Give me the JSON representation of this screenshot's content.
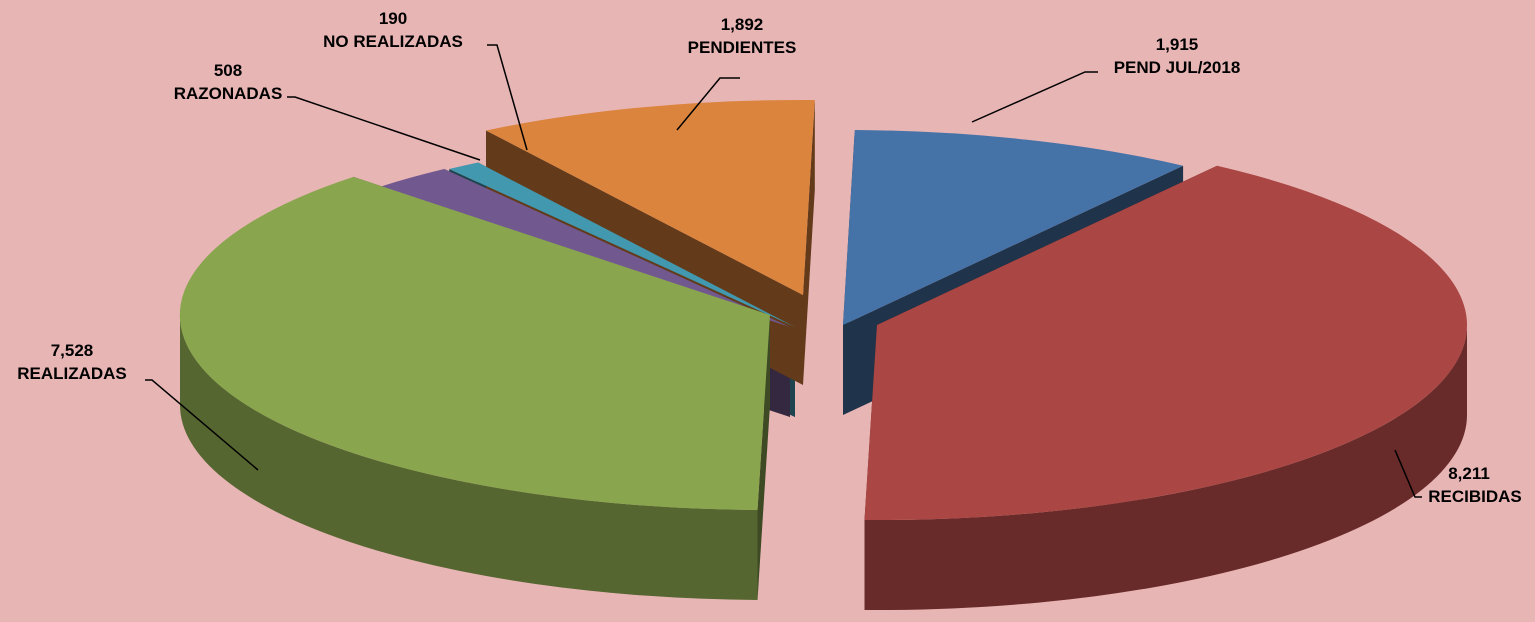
{
  "chart_data": {
    "type": "pie",
    "variant": "3d-exploded",
    "slices": [
      {
        "label": "PEND JUL/2018",
        "value": 1915,
        "display": "1,915",
        "color": "#4572a7"
      },
      {
        "label": "RECIBIDAS",
        "value": 8211,
        "display": "8,211",
        "color": "#aa4643"
      },
      {
        "label": "REALIZADAS",
        "value": 7528,
        "display": "7,528",
        "color": "#89a54e"
      },
      {
        "label": "RAZONADAS",
        "value": 508,
        "display": "508",
        "color": "#71588f"
      },
      {
        "label": "NO REALIZADAS",
        "value": 190,
        "display": "190",
        "color": "#4198af"
      },
      {
        "label": "PENDIENTES",
        "value": 1892,
        "display": "1,892",
        "color": "#db843d"
      }
    ]
  }
}
